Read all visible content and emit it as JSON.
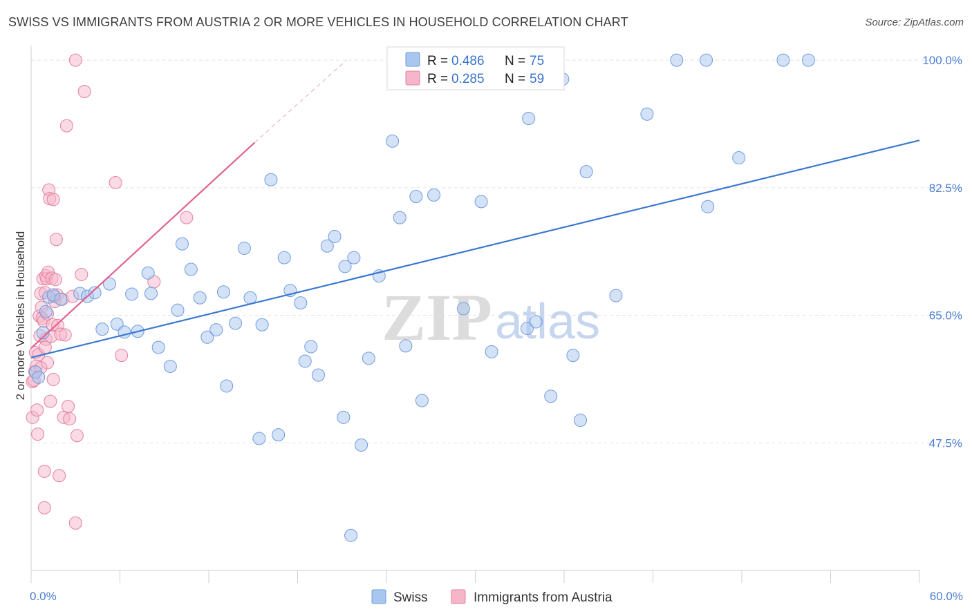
{
  "header": {
    "title": "SWISS VS IMMIGRANTS FROM AUSTRIA 2 OR MORE VEHICLES IN HOUSEHOLD CORRELATION CHART",
    "source": "Source: ZipAtlas.com"
  },
  "watermark": {
    "zip": "ZIP",
    "atlas": "atlas"
  },
  "legend": {
    "r_label": "R =",
    "n_label": "N =",
    "rows": [
      {
        "r": "0.486",
        "n": "75",
        "color": "#a9c6ef"
      },
      {
        "r": "0.285",
        "n": "59",
        "color": "#f5b6c9"
      }
    ]
  },
  "chart_data": {
    "type": "scatter",
    "title": "SWISS VS IMMIGRANTS FROM AUSTRIA 2 OR MORE VEHICLES IN HOUSEHOLD CORRELATION CHART",
    "ylabel": "2 or more Vehicles in Household",
    "xlabel": "",
    "xlim": [
      0,
      60
    ],
    "ylim": [
      30,
      102
    ],
    "x_tick_labels": [
      "0.0%",
      "60.0%"
    ],
    "y_ticks": [
      47.5,
      65.0,
      82.5,
      100.0
    ],
    "y_tick_labels": [
      "47.5%",
      "65.0%",
      "82.5%",
      "100.0%"
    ],
    "grid": true,
    "legend_position": "top-center",
    "series": [
      {
        "name": "Swiss",
        "color": "#a9c6ef",
        "stroke": "#6c9bdc",
        "trend": {
          "x": [
            0,
            60
          ],
          "y": [
            59.2,
            89.0
          ],
          "color": "#3a78d0"
        },
        "points": [
          [
            0.3,
            57.2
          ],
          [
            0.5,
            56.5
          ],
          [
            0.8,
            62.6
          ],
          [
            1.0,
            65.5
          ],
          [
            1.2,
            67.5
          ],
          [
            1.5,
            67.8
          ],
          [
            2.0,
            67.2
          ],
          [
            3.3,
            68.0
          ],
          [
            3.8,
            67.6
          ],
          [
            4.3,
            68.1
          ],
          [
            4.8,
            63.1
          ],
          [
            5.3,
            69.3
          ],
          [
            5.8,
            63.8
          ],
          [
            6.3,
            62.7
          ],
          [
            6.8,
            67.9
          ],
          [
            7.2,
            62.8
          ],
          [
            7.9,
            70.8
          ],
          [
            8.1,
            68.0
          ],
          [
            8.6,
            60.6
          ],
          [
            9.4,
            58.0
          ],
          [
            9.9,
            65.7
          ],
          [
            10.2,
            74.8
          ],
          [
            10.8,
            71.3
          ],
          [
            11.4,
            67.4
          ],
          [
            11.9,
            62.0
          ],
          [
            12.5,
            63.0
          ],
          [
            13.0,
            68.2
          ],
          [
            13.2,
            55.3
          ],
          [
            13.8,
            63.9
          ],
          [
            14.4,
            74.2
          ],
          [
            14.8,
            67.4
          ],
          [
            15.4,
            48.1
          ],
          [
            15.6,
            63.7
          ],
          [
            16.2,
            83.6
          ],
          [
            16.7,
            48.6
          ],
          [
            17.1,
            72.9
          ],
          [
            17.5,
            68.4
          ],
          [
            18.2,
            66.7
          ],
          [
            18.5,
            58.7
          ],
          [
            18.9,
            60.7
          ],
          [
            19.4,
            56.8
          ],
          [
            20.0,
            74.5
          ],
          [
            20.5,
            75.8
          ],
          [
            21.1,
            51.0
          ],
          [
            21.2,
            71.7
          ],
          [
            21.8,
            72.9
          ],
          [
            22.3,
            47.2
          ],
          [
            22.8,
            59.1
          ],
          [
            23.5,
            70.4
          ],
          [
            24.4,
            88.9
          ],
          [
            24.9,
            78.4
          ],
          [
            25.3,
            60.8
          ],
          [
            26.0,
            81.3
          ],
          [
            26.4,
            53.3
          ],
          [
            27.2,
            81.5
          ],
          [
            29.2,
            65.9
          ],
          [
            30.4,
            80.6
          ],
          [
            31.1,
            60.0
          ],
          [
            32.5,
            100.0
          ],
          [
            33.5,
            63.2
          ],
          [
            33.6,
            92.0
          ],
          [
            34.1,
            64.1
          ],
          [
            35.1,
            53.9
          ],
          [
            35.9,
            97.4
          ],
          [
            36.6,
            59.5
          ],
          [
            37.1,
            50.6
          ],
          [
            37.5,
            84.7
          ],
          [
            39.5,
            67.7
          ],
          [
            41.6,
            92.6
          ],
          [
            43.6,
            100.0
          ],
          [
            45.6,
            100.0
          ],
          [
            45.7,
            79.9
          ],
          [
            47.8,
            86.6
          ],
          [
            50.8,
            100.0
          ],
          [
            52.5,
            100.0
          ],
          [
            21.6,
            34.8
          ]
        ]
      },
      {
        "name": "Immigrants from Austria",
        "color": "#f5b6c9",
        "stroke": "#e57fa0",
        "trend": {
          "x": [
            0,
            15.1
          ],
          "y": [
            60.5,
            88.7
          ],
          "color": "#e0628d",
          "dashed_extension_to": [
            21.3,
            100.0
          ]
        },
        "points": [
          [
            0.1,
            55.9
          ],
          [
            0.1,
            51.0
          ],
          [
            0.2,
            56.1
          ],
          [
            0.25,
            57.3
          ],
          [
            0.3,
            59.9
          ],
          [
            0.35,
            58.0
          ],
          [
            0.4,
            52.0
          ],
          [
            0.45,
            48.7
          ],
          [
            0.5,
            59.6
          ],
          [
            0.55,
            64.9
          ],
          [
            0.6,
            62.2
          ],
          [
            0.65,
            68.0
          ],
          [
            0.7,
            66.1
          ],
          [
            0.75,
            64.6
          ],
          [
            0.8,
            70.0
          ],
          [
            0.85,
            64.2
          ],
          [
            0.9,
            43.6
          ],
          [
            0.9,
            38.6
          ],
          [
            0.95,
            68.1
          ],
          [
            1.0,
            61.7
          ],
          [
            1.0,
            70.4
          ],
          [
            1.05,
            70.0
          ],
          [
            1.1,
            58.5
          ],
          [
            1.15,
            70.9
          ],
          [
            1.2,
            82.2
          ],
          [
            1.25,
            81.0
          ],
          [
            1.3,
            53.2
          ],
          [
            1.35,
            62.1
          ],
          [
            1.4,
            70.1
          ],
          [
            1.45,
            63.7
          ],
          [
            1.5,
            80.9
          ],
          [
            1.5,
            56.2
          ],
          [
            1.6,
            66.9
          ],
          [
            1.65,
            69.9
          ],
          [
            1.7,
            75.4
          ],
          [
            1.75,
            67.8
          ],
          [
            1.8,
            63.6
          ],
          [
            1.9,
            43.0
          ],
          [
            2.0,
            62.4
          ],
          [
            2.1,
            67.2
          ],
          [
            2.2,
            51.0
          ],
          [
            2.3,
            62.3
          ],
          [
            2.4,
            91.0
          ],
          [
            2.5,
            52.5
          ],
          [
            2.6,
            50.8
          ],
          [
            2.8,
            67.6
          ],
          [
            3.0,
            36.5
          ],
          [
            3.0,
            100.0
          ],
          [
            3.1,
            48.5
          ],
          [
            3.4,
            70.6
          ],
          [
            3.6,
            95.7
          ],
          [
            5.7,
            83.2
          ],
          [
            6.1,
            59.5
          ],
          [
            8.3,
            69.6
          ],
          [
            10.5,
            78.4
          ],
          [
            1.1,
            65.2
          ],
          [
            0.95,
            60.6
          ],
          [
            0.65,
            57.8
          ],
          [
            1.55,
            67.6
          ]
        ]
      }
    ]
  },
  "bottom_legend": {
    "items": [
      {
        "label": "Swiss",
        "color": "#a9c6ef",
        "stroke": "#6c9bdc"
      },
      {
        "label": "Immigrants from Austria",
        "color": "#f5b6c9",
        "stroke": "#e57fa0"
      }
    ]
  }
}
